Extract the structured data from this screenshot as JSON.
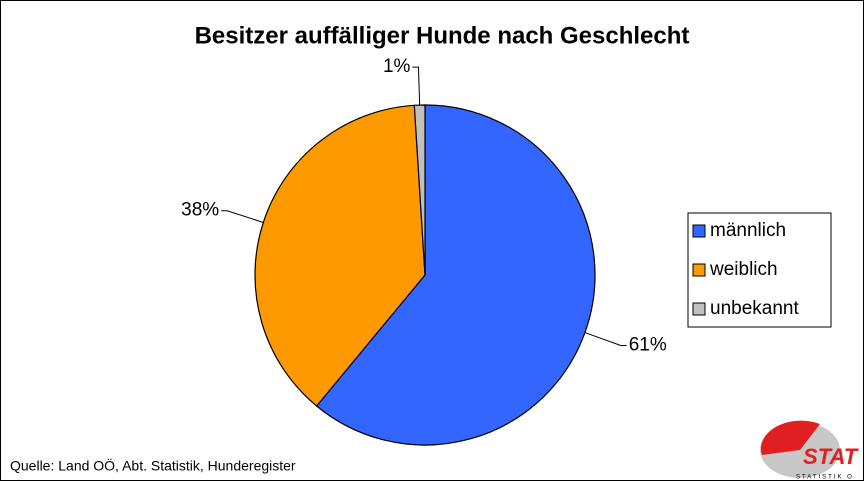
{
  "chart_data": {
    "type": "pie",
    "title": "Besitzer auffälliger Hunde nach Geschlecht",
    "categories": [
      "männlich",
      "weiblich",
      "unbekannt"
    ],
    "values": [
      61,
      38,
      1
    ],
    "value_labels": [
      "61%",
      "38%",
      "1%"
    ],
    "colors": [
      "#3366ff",
      "#ff9900",
      "#c0c0c0"
    ],
    "legend": "right",
    "source": "Quelle: Land OÖ, Abt. Statistik,  Hunderegister",
    "logo": "STAT",
    "logo_subtitle": "STATISTIK O"
  }
}
